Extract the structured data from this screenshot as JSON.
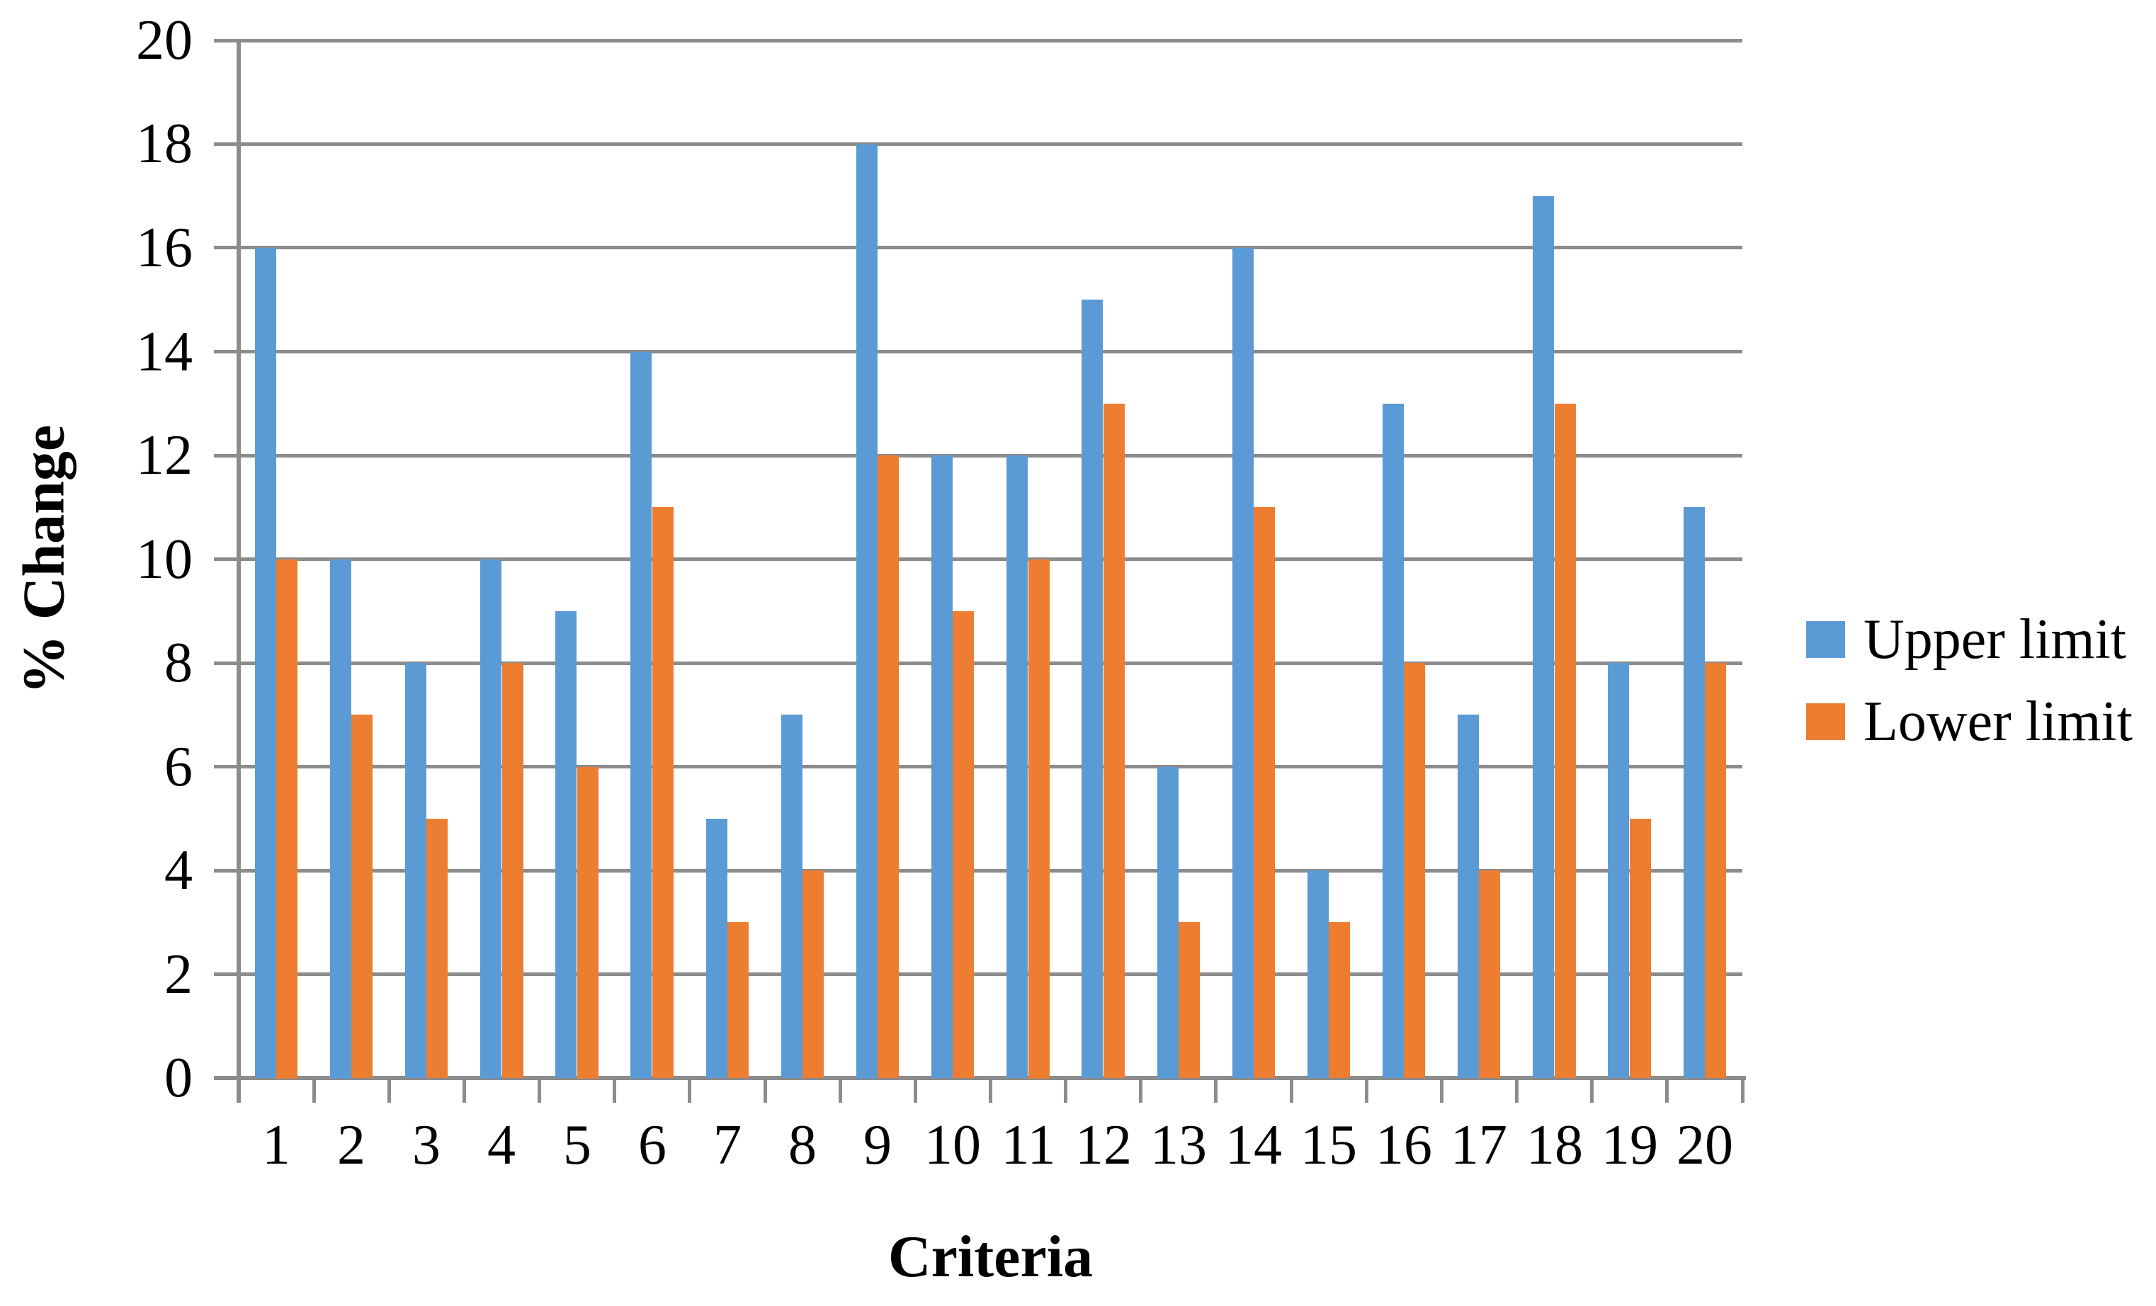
{
  "chart_data": {
    "type": "bar",
    "title": "",
    "categories": [
      "1",
      "2",
      "3",
      "4",
      "5",
      "6",
      "7",
      "8",
      "9",
      "10",
      "11",
      "12",
      "13",
      "14",
      "15",
      "16",
      "17",
      "18",
      "19",
      "20"
    ],
    "series": [
      {
        "name": "Upper limit",
        "color": "#5B9BD5",
        "values": [
          16,
          10,
          8,
          10,
          9,
          14,
          5,
          7,
          18,
          12,
          12,
          15,
          6,
          16,
          4,
          13,
          7,
          17,
          8,
          11
        ]
      },
      {
        "name": "Lower limit",
        "color": "#ED7D31",
        "values": [
          10,
          7,
          5,
          8,
          6,
          11,
          3,
          4,
          12,
          9,
          10,
          13,
          3,
          11,
          3,
          8,
          4,
          13,
          5,
          8
        ]
      }
    ],
    "xlabel": "Criteria",
    "ylabel": "% Change",
    "ylim": [
      0,
      20
    ],
    "y_ticks": [
      0,
      2,
      4,
      6,
      8,
      10,
      12,
      14,
      16,
      18,
      20
    ],
    "grid": true,
    "legend_position": "right",
    "gap_width_percent": 150
  },
  "colors": {
    "grid": "#8C8C8C",
    "axis": "#8C8C8C",
    "text": "#000000",
    "background": "#FFFFFF"
  }
}
